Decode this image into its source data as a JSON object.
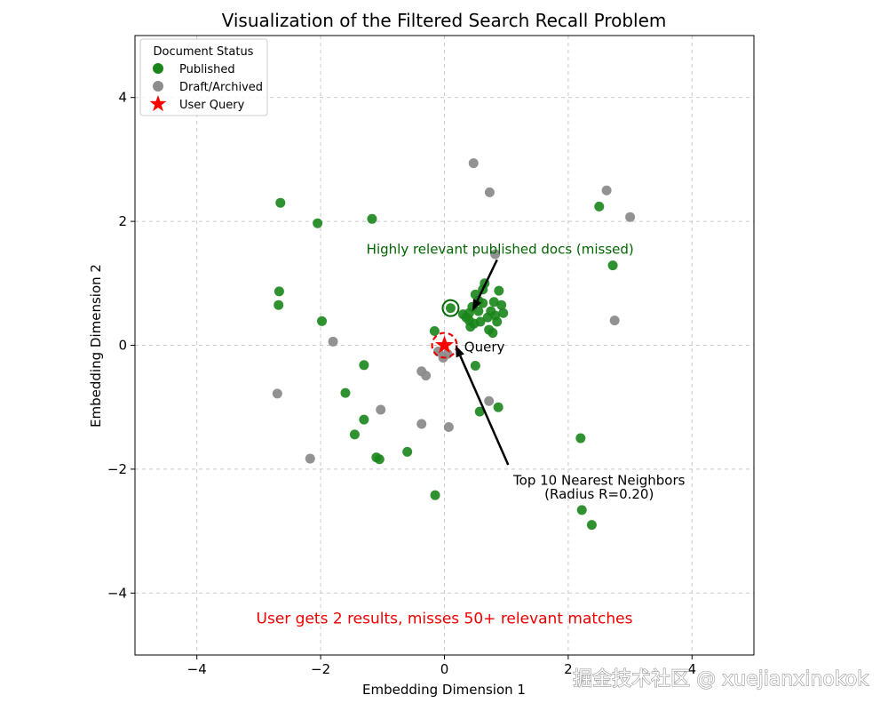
{
  "chart_data": {
    "type": "scatter",
    "title": "Visualization of the Filtered Search Recall Problem",
    "xlabel": "Embedding Dimension 1",
    "ylabel": "Embedding Dimension 2",
    "xlim": [
      -5,
      5
    ],
    "ylim": [
      -5,
      5
    ],
    "xticks": [
      -4,
      -2,
      0,
      2,
      4
    ],
    "yticks": [
      -4,
      -2,
      0,
      2,
      4
    ],
    "xtick_labels": [
      "−4",
      "−2",
      "0",
      "2",
      "4"
    ],
    "ytick_labels": [
      "−4",
      "−2",
      "0",
      "2",
      "4"
    ],
    "grid": true,
    "legend": {
      "title": "Document Status",
      "placement": "top-left",
      "entries": [
        "Published",
        "Draft/Archived",
        "User Query"
      ]
    },
    "series": [
      {
        "name": "Published",
        "color": "#1a851a",
        "points": [
          [
            -2.65,
            2.3
          ],
          [
            -2.05,
            1.97
          ],
          [
            -1.17,
            2.04
          ],
          [
            -2.67,
            0.87
          ],
          [
            -2.68,
            0.65
          ],
          [
            -1.98,
            0.39
          ],
          [
            -1.3,
            -0.32
          ],
          [
            -1.6,
            -0.77
          ],
          [
            -1.3,
            -1.2
          ],
          [
            -1.45,
            -1.44
          ],
          [
            -1.1,
            -1.81
          ],
          [
            -1.05,
            -1.84
          ],
          [
            -0.6,
            -1.72
          ],
          [
            -0.15,
            -2.42
          ],
          [
            -0.16,
            0.23
          ],
          [
            0.5,
            -0.33
          ],
          [
            0.57,
            -1.07
          ],
          [
            0.87,
            -1.0
          ],
          [
            2.2,
            -1.5
          ],
          [
            2.22,
            -2.66
          ],
          [
            2.38,
            -2.9
          ],
          [
            2.5,
            2.24
          ],
          [
            2.72,
            1.29
          ],
          [
            0.1,
            0.6
          ],
          [
            0.45,
            0.62
          ],
          [
            0.5,
            0.82
          ],
          [
            0.62,
            0.9
          ],
          [
            0.65,
            1.0
          ],
          [
            0.88,
            0.88
          ],
          [
            0.92,
            0.65
          ],
          [
            0.95,
            0.52
          ],
          [
            0.8,
            0.7
          ],
          [
            0.7,
            0.45
          ],
          [
            0.55,
            0.55
          ],
          [
            0.4,
            0.4
          ],
          [
            0.3,
            0.5
          ],
          [
            0.42,
            0.3
          ],
          [
            0.58,
            0.38
          ],
          [
            0.75,
            0.55
          ],
          [
            0.85,
            0.38
          ],
          [
            0.78,
            0.2
          ],
          [
            0.35,
            0.45
          ],
          [
            0.62,
            0.68
          ],
          [
            0.48,
            0.35
          ],
          [
            0.72,
            0.25
          ],
          [
            0.4,
            0.52
          ],
          [
            0.55,
            0.72
          ],
          [
            0.82,
            0.48
          ]
        ]
      },
      {
        "name": "Draft/Archived",
        "color": "#8c8c8c",
        "points": [
          [
            0.47,
            2.94
          ],
          [
            0.73,
            2.47
          ],
          [
            2.62,
            2.5
          ],
          [
            3.0,
            2.07
          ],
          [
            0.82,
            1.47
          ],
          [
            2.75,
            0.4
          ],
          [
            -1.8,
            0.06
          ],
          [
            -2.7,
            -0.78
          ],
          [
            -0.37,
            -0.42
          ],
          [
            -0.3,
            -0.49
          ],
          [
            -1.03,
            -1.04
          ],
          [
            -0.37,
            -1.27
          ],
          [
            0.07,
            -1.32
          ],
          [
            -2.17,
            -1.83
          ],
          [
            0.72,
            -0.9
          ],
          [
            -0.1,
            -0.1
          ],
          [
            0.05,
            -0.14
          ],
          [
            -0.02,
            -0.2
          ]
        ]
      },
      {
        "name": "User Query",
        "color": "#ff0000",
        "points": [
          [
            0.0,
            0.0
          ]
        ]
      }
    ],
    "top_k_radius": 0.2,
    "annotations": [
      {
        "text": "Highly relevant published docs (missed)",
        "x": 0.9,
        "y": 1.55,
        "color": "#006400",
        "arrow_to": [
          0.45,
          0.55
        ]
      },
      {
        "text": "Query",
        "x": 0.32,
        "y": -0.03,
        "color": "#000000"
      },
      {
        "text": "Top 10 Nearest Neighbors",
        "x": 2.5,
        "y": -2.18,
        "color": "#000000",
        "arrow_to": [
          0.18,
          0.0
        ]
      },
      {
        "text": "(Radius R=0.20)",
        "x": 2.5,
        "y": -2.4,
        "color": "#000000"
      },
      {
        "text": "User gets 2 results, misses 50+ relevant matches",
        "x": 0.0,
        "y": -4.42,
        "color": "#ee0000"
      }
    ]
  },
  "watermark": "掘金技术社区 @ xuejianxinokok"
}
